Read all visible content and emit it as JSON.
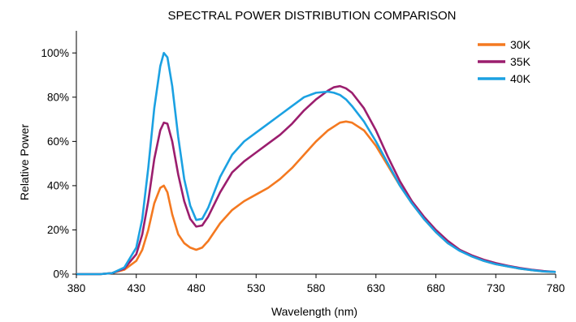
{
  "chart_data": {
    "type": "line",
    "title": "SPECTRAL POWER DISTRIBUTION COMPARISON",
    "xlabel": "Wavelength (nm)",
    "ylabel": "Relative Power",
    "xlim": [
      380,
      780
    ],
    "ylim": [
      0,
      1.1
    ],
    "x_ticks": [
      380,
      430,
      480,
      530,
      580,
      630,
      680,
      730,
      780
    ],
    "y_ticks": [
      0,
      0.2,
      0.4,
      0.6,
      0.8,
      1.0
    ],
    "x_tick_labels": [
      "380",
      "430",
      "480",
      "530",
      "580",
      "630",
      "680",
      "730",
      "780"
    ],
    "y_tick_labels": [
      "0%",
      "20%",
      "40%",
      "60%",
      "80%",
      "100%"
    ],
    "grid": false,
    "legend_position": "top-right",
    "series": [
      {
        "name": "30K",
        "color": "#F47920",
        "x": [
          380,
          400,
          410,
          420,
          430,
          435,
          440,
          445,
          450,
          453,
          456,
          460,
          465,
          470,
          475,
          480,
          485,
          490,
          500,
          510,
          520,
          530,
          540,
          550,
          560,
          570,
          580,
          590,
          600,
          605,
          610,
          620,
          630,
          640,
          650,
          660,
          670,
          680,
          690,
          700,
          710,
          720,
          730,
          740,
          750,
          760,
          770,
          780
        ],
        "y": [
          0.0,
          0.0,
          0.005,
          0.02,
          0.06,
          0.11,
          0.2,
          0.32,
          0.39,
          0.4,
          0.37,
          0.27,
          0.18,
          0.14,
          0.12,
          0.11,
          0.12,
          0.15,
          0.23,
          0.29,
          0.33,
          0.36,
          0.39,
          0.43,
          0.48,
          0.54,
          0.6,
          0.65,
          0.685,
          0.69,
          0.685,
          0.65,
          0.58,
          0.49,
          0.4,
          0.32,
          0.25,
          0.19,
          0.14,
          0.11,
          0.08,
          0.06,
          0.045,
          0.035,
          0.025,
          0.018,
          0.012,
          0.01
        ]
      },
      {
        "name": "35K",
        "color": "#9B1E6E",
        "x": [
          380,
          400,
          410,
          420,
          430,
          435,
          440,
          445,
          450,
          453,
          456,
          460,
          465,
          470,
          475,
          480,
          485,
          490,
          500,
          510,
          520,
          530,
          540,
          550,
          560,
          570,
          580,
          590,
          595,
          600,
          605,
          610,
          620,
          630,
          640,
          650,
          660,
          670,
          680,
          690,
          700,
          710,
          720,
          730,
          740,
          750,
          760,
          770,
          780
        ],
        "y": [
          0.0,
          0.0,
          0.005,
          0.025,
          0.09,
          0.18,
          0.33,
          0.52,
          0.65,
          0.685,
          0.68,
          0.6,
          0.45,
          0.33,
          0.25,
          0.215,
          0.22,
          0.26,
          0.37,
          0.46,
          0.51,
          0.55,
          0.59,
          0.63,
          0.68,
          0.74,
          0.79,
          0.83,
          0.845,
          0.85,
          0.84,
          0.82,
          0.75,
          0.65,
          0.53,
          0.42,
          0.33,
          0.26,
          0.2,
          0.15,
          0.11,
          0.085,
          0.065,
          0.05,
          0.038,
          0.028,
          0.02,
          0.014,
          0.01
        ]
      },
      {
        "name": "40K",
        "color": "#1BA1E2",
        "x": [
          380,
          400,
          410,
          420,
          430,
          435,
          440,
          445,
          450,
          453,
          456,
          460,
          465,
          470,
          475,
          480,
          485,
          490,
          500,
          510,
          520,
          530,
          540,
          550,
          560,
          570,
          580,
          590,
          595,
          600,
          605,
          610,
          620,
          630,
          640,
          650,
          660,
          670,
          680,
          690,
          700,
          710,
          720,
          730,
          740,
          750,
          760,
          770,
          780
        ],
        "y": [
          0.0,
          0.0,
          0.005,
          0.03,
          0.12,
          0.25,
          0.48,
          0.75,
          0.94,
          1.0,
          0.98,
          0.85,
          0.62,
          0.43,
          0.31,
          0.245,
          0.25,
          0.3,
          0.44,
          0.54,
          0.6,
          0.64,
          0.68,
          0.72,
          0.76,
          0.8,
          0.82,
          0.825,
          0.82,
          0.81,
          0.79,
          0.76,
          0.69,
          0.6,
          0.5,
          0.4,
          0.32,
          0.25,
          0.19,
          0.14,
          0.105,
          0.08,
          0.06,
          0.045,
          0.035,
          0.025,
          0.018,
          0.012,
          0.01
        ]
      }
    ]
  }
}
